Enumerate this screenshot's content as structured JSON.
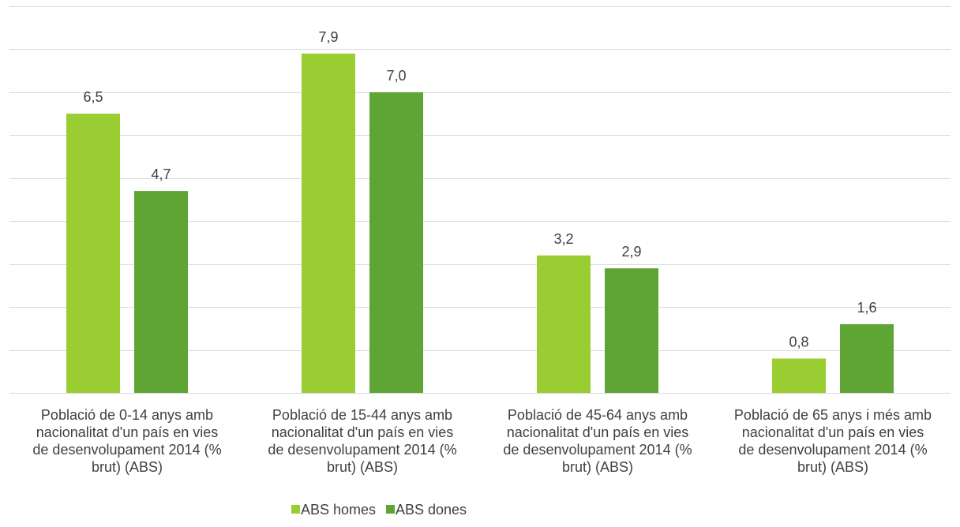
{
  "chart_data": {
    "type": "bar",
    "title": "",
    "xlabel": "",
    "ylabel": "",
    "categories": [
      [
        "Població de 0-14 anys amb",
        "nacionalitat d'un país en vies",
        "de desenvolupament 2014 (%",
        "brut) (ABS)"
      ],
      [
        "Població de 15-44 anys amb",
        "nacionalitat d'un país en vies",
        "de desenvolupament 2014 (%",
        "brut) (ABS)"
      ],
      [
        "Població de 45-64 anys amb",
        "nacionalitat d'un país en vies",
        "de desenvolupament 2014 (%",
        "brut) (ABS)"
      ],
      [
        "Població de 65 anys i més amb",
        "nacionalitat d'un país en vies",
        "de desenvolupament 2014 (%",
        "brut) (ABS)"
      ]
    ],
    "series": [
      {
        "name": "ABS homes",
        "color": "#9ACD32",
        "values": [
          6.5,
          7.9,
          3.2,
          0.8
        ],
        "labels": [
          "6,5",
          "7,9",
          "3,2",
          "0,8"
        ]
      },
      {
        "name": "ABS dones",
        "color": "#5FA536",
        "values": [
          4.7,
          7.0,
          2.9,
          1.6
        ],
        "labels": [
          "4,7",
          "7,0",
          "2,9",
          "1,6"
        ]
      }
    ],
    "ylim": [
      0,
      9
    ],
    "ytick_step": 1,
    "grid": true,
    "y_axis_labels_visible": false,
    "legend_position": "bottom-center",
    "gridline_color": "#d9d9d9",
    "text_color": "#404040"
  }
}
